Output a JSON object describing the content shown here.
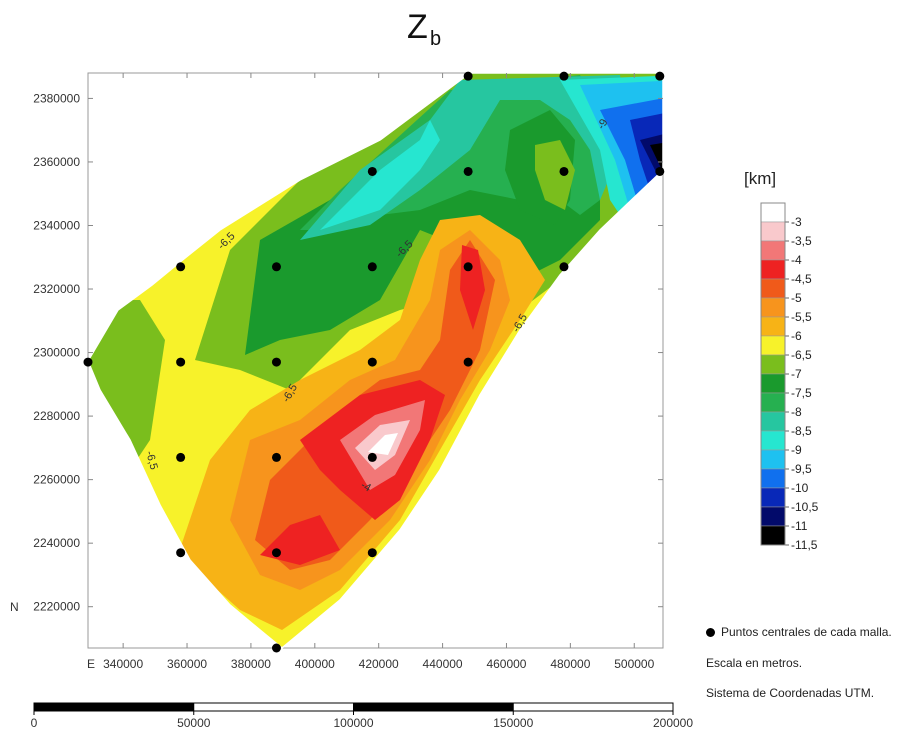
{
  "chart_data": {
    "type": "contour",
    "title": "Z",
    "title_subscript": "b",
    "units": "[km]",
    "x_ticks": [
      340000,
      360000,
      380000,
      400000,
      420000,
      440000,
      460000,
      480000,
      500000
    ],
    "y_ticks": [
      2220000,
      2240000,
      2260000,
      2280000,
      2300000,
      2320000,
      2340000,
      2360000,
      2380000
    ],
    "xlim": [
      329000,
      509000
    ],
    "ylim": [
      2207000,
      2388000
    ],
    "east_label": "E",
    "north_label": "N",
    "levels": [
      {
        "label": "-3",
        "color": "#ffffff"
      },
      {
        "label": "-3,5",
        "color": "#f9c9cc"
      },
      {
        "label": "-4",
        "color": "#f27777"
      },
      {
        "label": "-4,5",
        "color": "#ee2222"
      },
      {
        "label": "-5",
        "color": "#f05a1a"
      },
      {
        "label": "-5,5",
        "color": "#f7941d"
      },
      {
        "label": "-6",
        "color": "#f7b316"
      },
      {
        "label": "-6,5",
        "color": "#f7f22a"
      },
      {
        "label": "-7",
        "color": "#7abe1d"
      },
      {
        "label": "-7,5",
        "color": "#1a9a2d"
      },
      {
        "label": "-8",
        "color": "#26b050"
      },
      {
        "label": "-8,5",
        "color": "#26c6a0"
      },
      {
        "label": "-9",
        "color": "#26e6d0"
      },
      {
        "label": "-9,5",
        "color": "#1ec1f0"
      },
      {
        "label": "-10",
        "color": "#1070ee"
      },
      {
        "label": "-10,5",
        "color": "#0828b8"
      },
      {
        "label": "-11",
        "color": "#020a6a"
      },
      {
        "label": "-11,5",
        "color": "#000000"
      }
    ],
    "grid_points": [
      {
        "x": 329000,
        "y": 2297000
      },
      {
        "x": 358000,
        "y": 2327000
      },
      {
        "x": 358000,
        "y": 2297000
      },
      {
        "x": 358000,
        "y": 2267000
      },
      {
        "x": 358000,
        "y": 2237000
      },
      {
        "x": 388000,
        "y": 2327000
      },
      {
        "x": 388000,
        "y": 2297000
      },
      {
        "x": 388000,
        "y": 2267000
      },
      {
        "x": 388000,
        "y": 2237000
      },
      {
        "x": 388000,
        "y": 2207000
      },
      {
        "x": 418000,
        "y": 2357000
      },
      {
        "x": 418000,
        "y": 2327000
      },
      {
        "x": 418000,
        "y": 2297000
      },
      {
        "x": 418000,
        "y": 2267000
      },
      {
        "x": 418000,
        "y": 2237000
      },
      {
        "x": 448000,
        "y": 2387000
      },
      {
        "x": 448000,
        "y": 2357000
      },
      {
        "x": 448000,
        "y": 2327000
      },
      {
        "x": 448000,
        "y": 2297000
      },
      {
        "x": 478000,
        "y": 2387000
      },
      {
        "x": 478000,
        "y": 2357000
      },
      {
        "x": 478000,
        "y": 2327000
      },
      {
        "x": 508000,
        "y": 2387000
      },
      {
        "x": 508000,
        "y": 2357000
      }
    ],
    "contour_labels": [
      "-6,5",
      "-6,5",
      "-6,5",
      "-6,5",
      "-6,5",
      "-9",
      "-4"
    ],
    "scale_bar": {
      "ticks": [
        "0",
        "50000",
        "100000",
        "150000",
        "200000"
      ]
    }
  },
  "notes": {
    "legend_points": "Puntos centrales de cada malla.",
    "scale": "Escala en metros.",
    "coords": "Sistema de Coordenadas UTM."
  }
}
